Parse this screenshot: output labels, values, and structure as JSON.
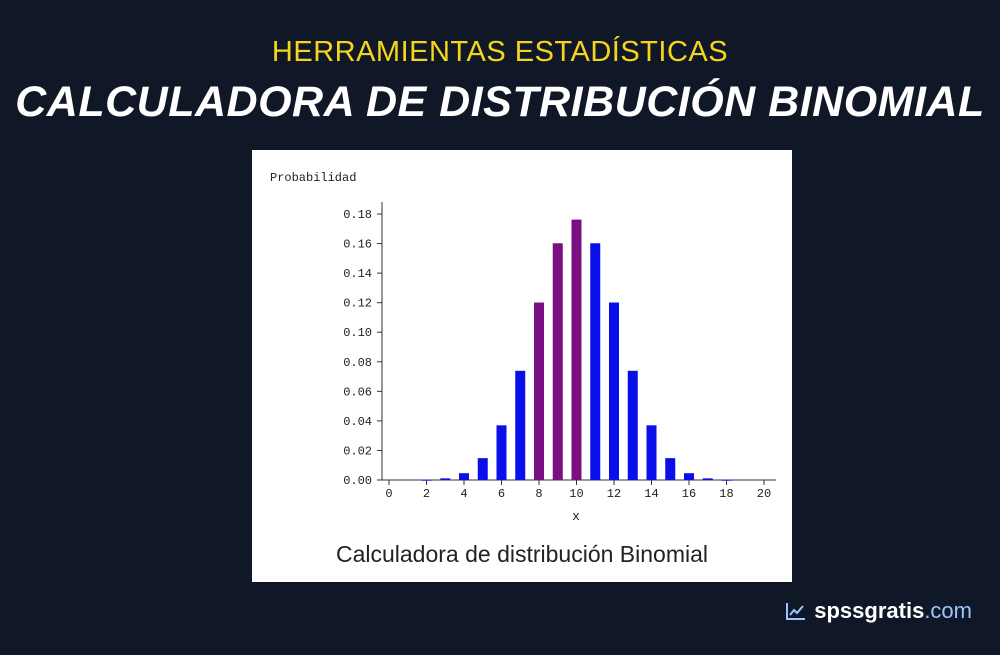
{
  "header": {
    "kicker": "HERRAMIENTAS ESTADÍSTICAS",
    "title": "CALCULADORA DE DISTRIBUCIÓN BINOMIAL"
  },
  "figure": {
    "caption": "Calculadora de distribución Binomial"
  },
  "branding": {
    "site_name": "spssgratis",
    "site_tld": ".com",
    "icon": "trend-line-icon"
  },
  "colors": {
    "background": "#101828",
    "kicker": "#f5d51c",
    "bar_blue": "#0a0ee8",
    "bar_purple": "#7a0f82"
  },
  "chart_data": {
    "type": "bar",
    "ylabel": "Probabilidad",
    "xlabel": "x",
    "ylim": [
      0,
      0.18
    ],
    "yticks": [
      "0.00",
      "0.02",
      "0.04",
      "0.06",
      "0.08",
      "0.10",
      "0.12",
      "0.14",
      "0.16",
      "0.18"
    ],
    "xlim": [
      0,
      20
    ],
    "xticks": [
      "0",
      "2",
      "4",
      "6",
      "8",
      "10",
      "12",
      "14",
      "16",
      "18",
      "20"
    ],
    "x": [
      0,
      1,
      2,
      3,
      4,
      5,
      6,
      7,
      8,
      9,
      10,
      11,
      12,
      13,
      14,
      15,
      16,
      17,
      18,
      19,
      20
    ],
    "values": [
      0.0,
      0.0,
      0.0002,
      0.0011,
      0.0046,
      0.0148,
      0.037,
      0.0739,
      0.1201,
      0.1602,
      0.1762,
      0.1602,
      0.1201,
      0.0739,
      0.037,
      0.0148,
      0.0046,
      0.0011,
      0.0002,
      0.0,
      0.0
    ],
    "highlight_x": [
      8,
      9,
      10
    ],
    "grid": false
  }
}
